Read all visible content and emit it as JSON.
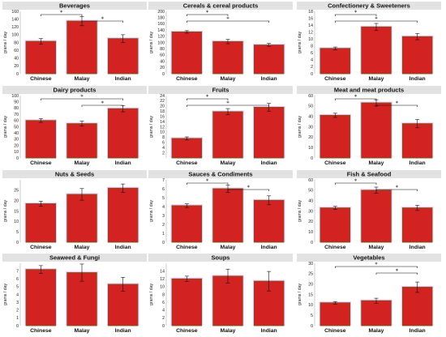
{
  "chart_data": [
    {
      "type": "bar",
      "title": "Beverages",
      "categories": [
        "Chinese",
        "Malay",
        "Indian"
      ],
      "values": [
        83,
        135,
        90
      ],
      "errors": [
        7,
        12,
        10
      ],
      "ylabel": "grams / day",
      "ylim": [
        0,
        160
      ],
      "yticks": [
        "0",
        "20",
        "40",
        "60",
        "80",
        "100",
        "120",
        "140",
        "160"
      ],
      "significance": [
        {
          "from": 0,
          "to": 1,
          "label": "*"
        },
        {
          "from": 1,
          "to": 2,
          "label": "*"
        }
      ]
    },
    {
      "type": "bar",
      "title": "Cereals & cereal products",
      "categories": [
        "Chinese",
        "Malay",
        "Indian"
      ],
      "values": [
        134,
        103,
        92
      ],
      "errors": [
        4,
        7,
        5
      ],
      "ylabel": "grams / day",
      "ylim": [
        0,
        200
      ],
      "yticks": [
        "0",
        "20",
        "40",
        "60",
        "80",
        "100",
        "120",
        "140",
        "160",
        "180",
        "200"
      ],
      "significance": [
        {
          "from": 0,
          "to": 1,
          "label": "*"
        },
        {
          "from": 0,
          "to": 2,
          "label": "*"
        }
      ]
    },
    {
      "type": "bar",
      "title": "Confectionery & Sweeteners",
      "categories": [
        "Chinese",
        "Malay",
        "Indian"
      ],
      "values": [
        7.3,
        13.5,
        10.7
      ],
      "errors": [
        0.4,
        1.0,
        0.9
      ],
      "ylabel": "grams / day",
      "ylim": [
        0,
        18
      ],
      "yticks": [
        "0",
        "2",
        "4",
        "6",
        "8",
        "10",
        "12",
        "14",
        "16",
        "18"
      ],
      "significance": [
        {
          "from": 0,
          "to": 1,
          "label": "*"
        },
        {
          "from": 0,
          "to": 2,
          "label": "*"
        }
      ]
    },
    {
      "type": "bar",
      "title": "Dairy products",
      "categories": [
        "Chinese",
        "Malay",
        "Indian"
      ],
      "values": [
        60,
        55,
        79
      ],
      "errors": [
        3,
        4,
        5
      ],
      "ylabel": "grams / day",
      "ylim": [
        0,
        100
      ],
      "yticks": [
        "0",
        "10",
        "20",
        "30",
        "40",
        "50",
        "60",
        "70",
        "80",
        "90",
        "100"
      ],
      "significance": [
        {
          "from": 0,
          "to": 2,
          "label": "*"
        },
        {
          "from": 1,
          "to": 2,
          "label": "*"
        }
      ]
    },
    {
      "type": "bar",
      "title": "Fruits",
      "categories": [
        "Chinese",
        "Malay",
        "Indian"
      ],
      "values": [
        7.5,
        17.8,
        19.5
      ],
      "errors": [
        0.6,
        1.2,
        1.5
      ],
      "ylabel": "grams / day",
      "ylim": [
        0,
        24
      ],
      "yticks": [
        "2",
        "4",
        "6",
        "8",
        "10",
        "12",
        "14",
        "16",
        "18",
        "20",
        "22",
        "24"
      ],
      "significance": [
        {
          "from": 0,
          "to": 1,
          "label": "*"
        },
        {
          "from": 0,
          "to": 2,
          "label": "*"
        }
      ]
    },
    {
      "type": "bar",
      "title": "Meat and meat products",
      "categories": [
        "Chinese",
        "Malay",
        "Indian"
      ],
      "values": [
        41,
        53,
        33
      ],
      "errors": [
        2,
        3,
        4
      ],
      "ylabel": "grams / day",
      "ylim": [
        0,
        60
      ],
      "yticks": [
        "0",
        "10",
        "20",
        "30",
        "40",
        "50",
        "60"
      ],
      "significance": [
        {
          "from": 0,
          "to": 1,
          "label": "*"
        },
        {
          "from": 1,
          "to": 2,
          "label": "*"
        }
      ]
    },
    {
      "type": "bar",
      "title": "Nuts & Seeds",
      "categories": [
        "Chinese",
        "Malay",
        "Indian"
      ],
      "values": [
        18.5,
        23,
        26
      ],
      "errors": [
        1.2,
        2.8,
        2.0
      ],
      "ylabel": "grams / day",
      "ylim": [
        0,
        30
      ],
      "yticks": [
        "0",
        "5",
        "10",
        "15",
        "20",
        "25"
      ],
      "significance": []
    },
    {
      "type": "bar",
      "title": "Sauces & Condiments",
      "categories": [
        "Chinese",
        "Malay",
        "Indian"
      ],
      "values": [
        4.1,
        6.0,
        4.7
      ],
      "errors": [
        0.2,
        0.4,
        0.5
      ],
      "ylabel": "grams / day",
      "ylim": [
        0,
        7
      ],
      "yticks": [
        "0",
        "1",
        "2",
        "3",
        "4",
        "5",
        "6",
        "7"
      ],
      "significance": [
        {
          "from": 0,
          "to": 1,
          "label": "*"
        },
        {
          "from": 1,
          "to": 2,
          "label": "*"
        }
      ]
    },
    {
      "type": "bar",
      "title": "Fish & Seafood",
      "categories": [
        "Chinese",
        "Malay",
        "Indian"
      ],
      "values": [
        33,
        50,
        33
      ],
      "errors": [
        1.5,
        3,
        2.5
      ],
      "ylabel": "grams / day",
      "ylim": [
        0,
        60
      ],
      "yticks": [
        "0",
        "10",
        "20",
        "30",
        "40",
        "50",
        "60"
      ],
      "significance": [
        {
          "from": 0,
          "to": 1,
          "label": "*"
        },
        {
          "from": 1,
          "to": 2,
          "label": "*"
        }
      ]
    },
    {
      "type": "bar",
      "title": "Seaweed & Fungi",
      "categories": [
        "Chinese",
        "Malay",
        "Indian"
      ],
      "values": [
        7.2,
        6.8,
        5.3
      ],
      "errors": [
        0.5,
        1.1,
        0.9
      ],
      "ylabel": "grams / day",
      "ylim": [
        0,
        8
      ],
      "yticks": [
        "0",
        "1",
        "2",
        "3",
        "4",
        "5",
        "6",
        "7"
      ],
      "significance": []
    },
    {
      "type": "bar",
      "title": "Soups",
      "categories": [
        "Chinese",
        "Malay",
        "Indian"
      ],
      "values": [
        12,
        12.7,
        11.4
      ],
      "errors": [
        0.7,
        1.8,
        2.5
      ],
      "ylabel": "grams / day",
      "ylim": [
        0,
        16
      ],
      "yticks": [
        "0",
        "2",
        "4",
        "6",
        "8",
        "10",
        "12",
        "14"
      ],
      "significance": []
    },
    {
      "type": "bar",
      "title": "Vegetables",
      "categories": [
        "Chinese",
        "Malay",
        "Indian"
      ],
      "values": [
        11,
        12,
        18.5
      ],
      "errors": [
        0.6,
        1.2,
        2.5
      ],
      "ylabel": "grams / day",
      "ylim": [
        0,
        30
      ],
      "yticks": [
        "0",
        "5",
        "10",
        "15",
        "20",
        "25",
        "30"
      ],
      "significance": [
        {
          "from": 0,
          "to": 2,
          "label": "*"
        },
        {
          "from": 1,
          "to": 2,
          "label": "*"
        }
      ]
    }
  ],
  "colors": {
    "bar": "#d32222",
    "bar_edge": "#6b5a1a",
    "halo": "#ff88ee",
    "title_strip": "#e2e2e2",
    "panel_bg": "#ffffff"
  }
}
